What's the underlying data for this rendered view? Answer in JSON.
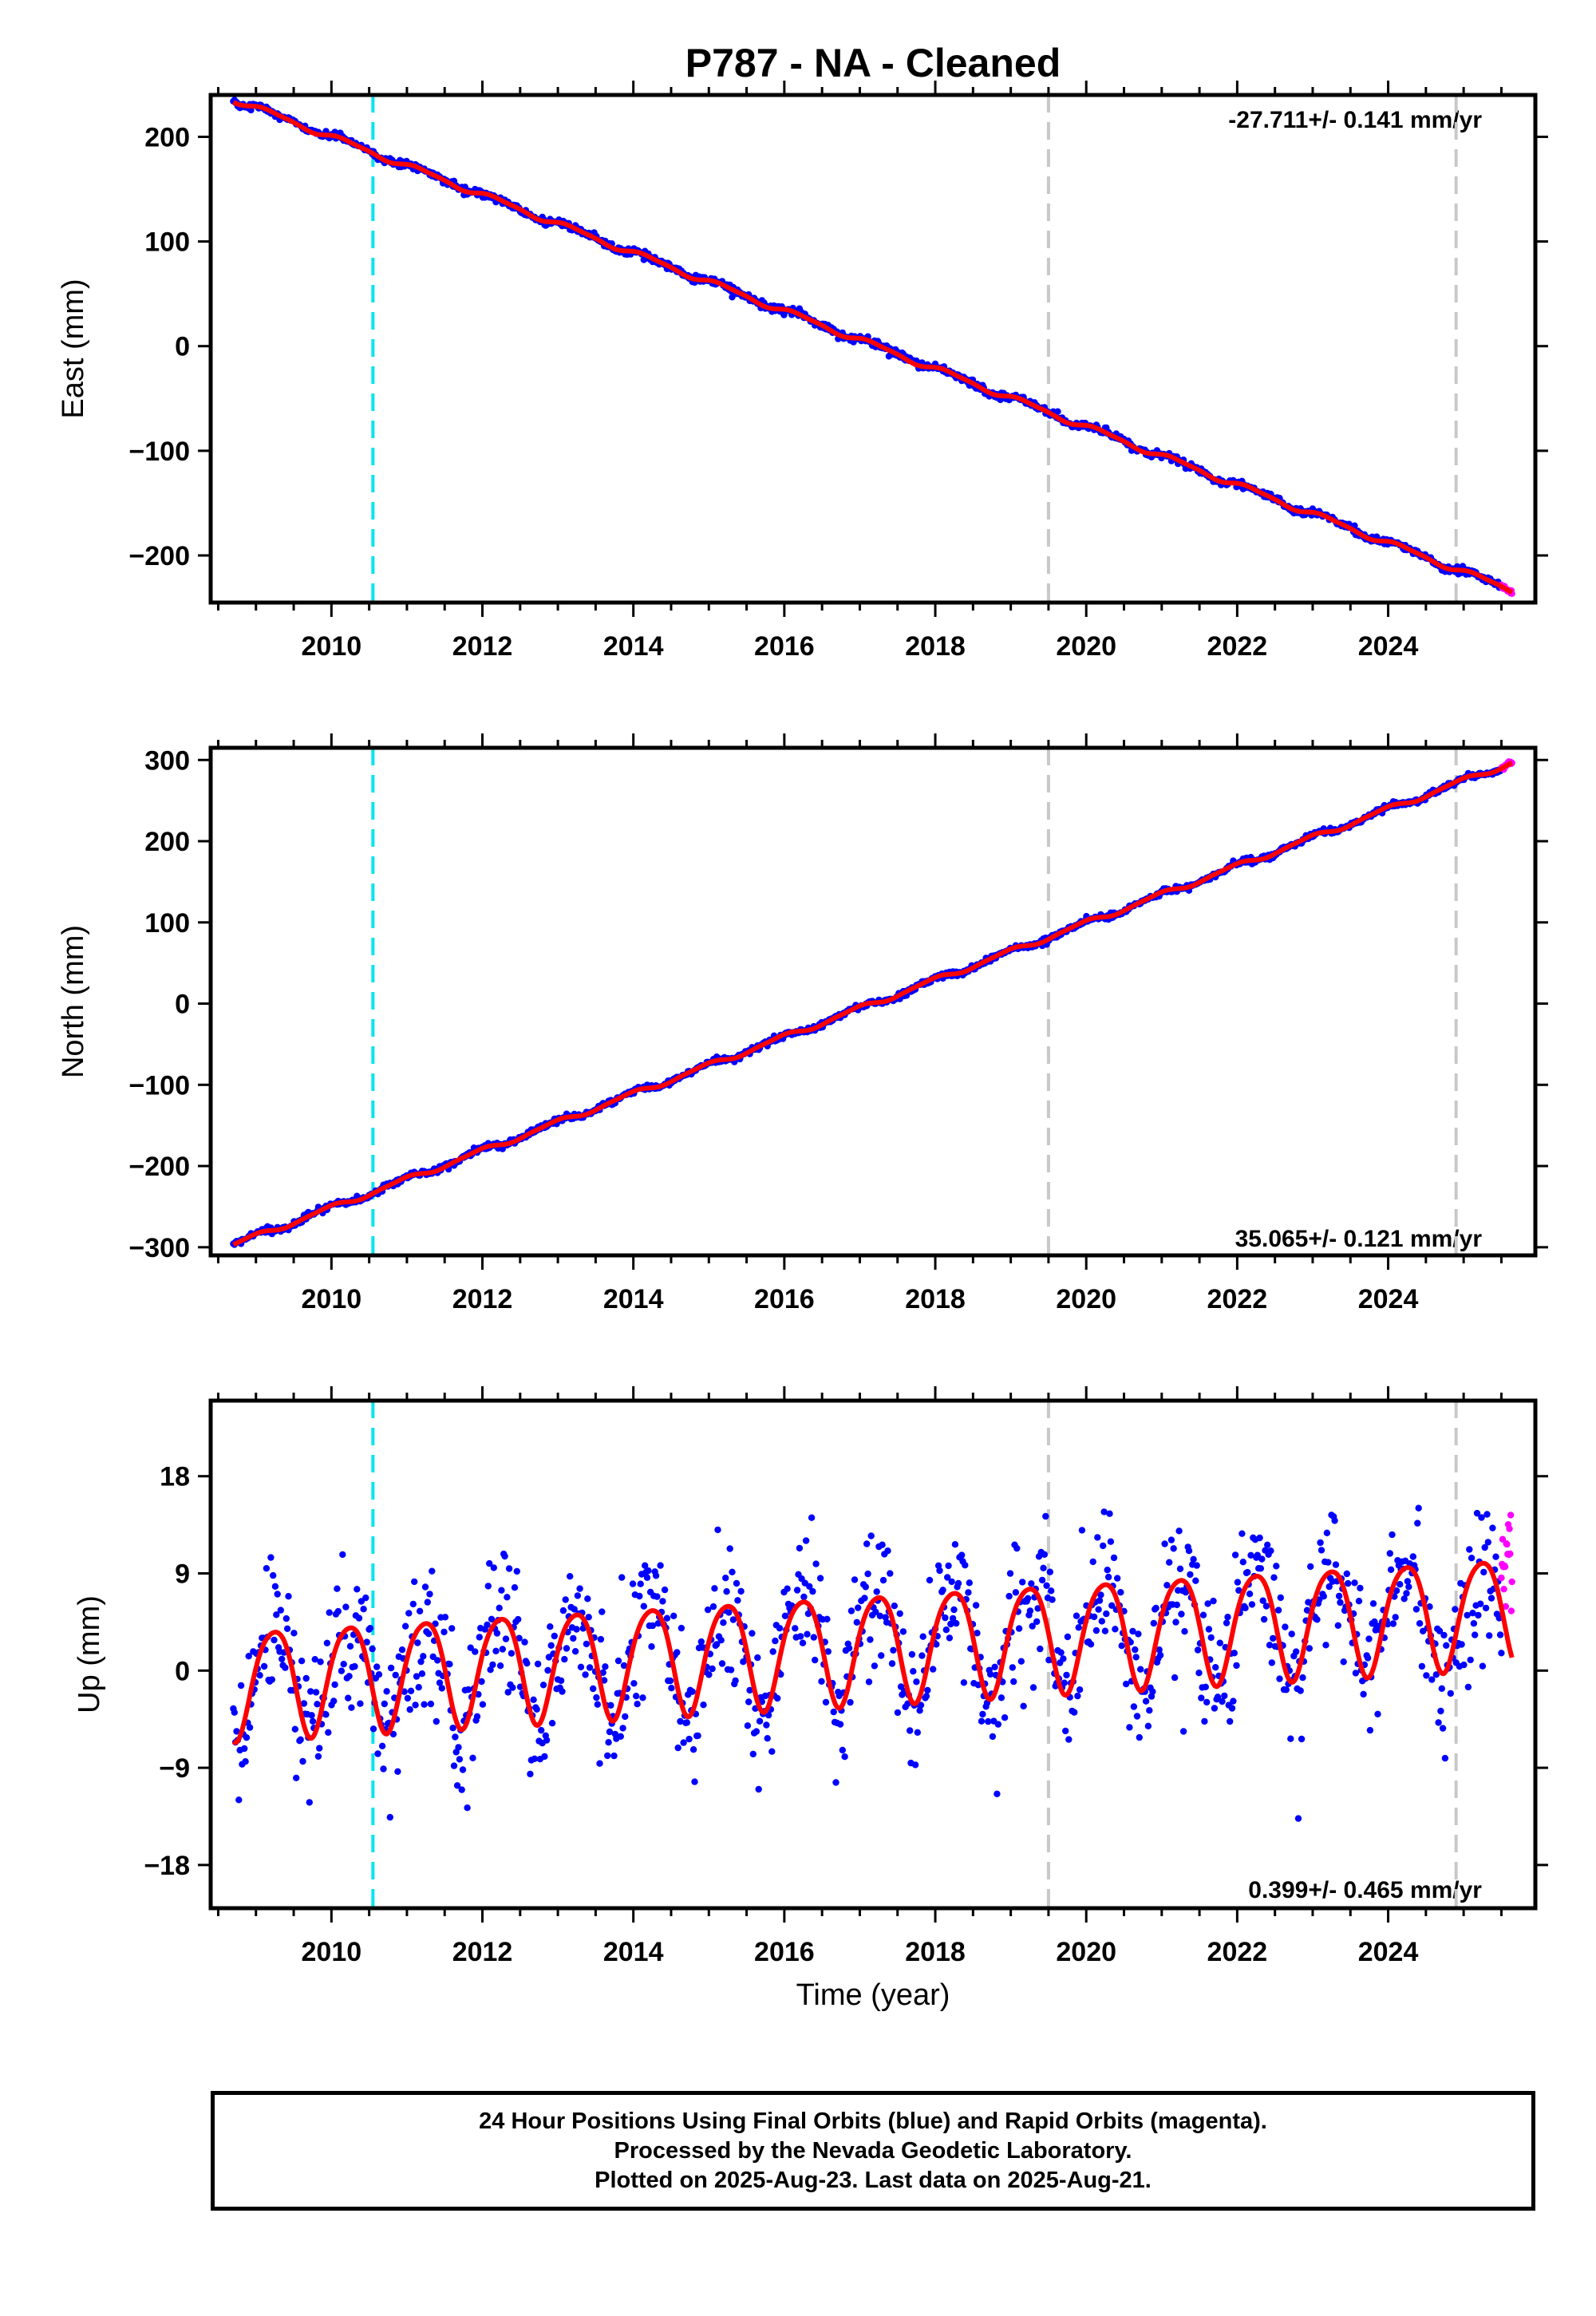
{
  "colors": {
    "final_orbits": "#0000ff",
    "rapid_orbits": "#ff00ff",
    "model_fit": "#ff0000",
    "antenna_change": "#00e5ee",
    "event_line": "#c8c8c8"
  },
  "chart_data": {
    "type": "scatter",
    "title": "P787  - NA - Cleaned",
    "time_axis": {
      "xlabel": "Time (year)",
      "xlim": [
        2008.4,
        2025.95
      ],
      "xticks": [
        2010,
        2012,
        2014,
        2016,
        2018,
        2020,
        2022,
        2024
      ],
      "minor_step": 0.5
    },
    "vertical_markers": [
      {
        "x": 2010.55,
        "kind": "antenna_change",
        "color": "#00e5ee"
      },
      {
        "x": 2019.5,
        "kind": "event",
        "color": "#c8c8c8"
      },
      {
        "x": 2024.9,
        "kind": "event",
        "color": "#c8c8c8"
      }
    ],
    "data_start": 2008.7,
    "rapid_start": 2025.5,
    "data_end": 2025.64,
    "panels": [
      {
        "name": "east",
        "ylabel": "East (mm)",
        "ylim": [
          -245,
          240
        ],
        "yticks": [
          -200,
          -100,
          0,
          100,
          200
        ],
        "rate_text": "-27.711+/- 0.141 mm/yr",
        "rate_position": "top-right",
        "fit": {
          "start_value": 236,
          "slope": -27.711,
          "annual_amp": 2.5,
          "annual_phase": 0.3,
          "semiannual_amp": 0.8,
          "semiannual_phase": 1.1
        },
        "scatter_sd": 1.8
      },
      {
        "name": "north",
        "ylabel": "North (mm)",
        "ylim": [
          -310,
          315
        ],
        "yticks": [
          -300,
          -200,
          -100,
          0,
          100,
          200,
          300
        ],
        "rate_text": "35.065+/- 0.121 mm/yr",
        "rate_position": "bottom-right",
        "fit": {
          "start_value": -297,
          "slope": 35.065,
          "annual_amp": 3.0,
          "annual_phase": 1.9,
          "semiannual_amp": 0.8,
          "semiannual_phase": 0.4
        },
        "scatter_sd": 1.8
      },
      {
        "name": "up",
        "ylabel": "Up (mm)",
        "ylim": [
          -22,
          25
        ],
        "yticks": [
          -18,
          -9,
          0,
          9,
          18
        ],
        "rate_text": "0.399+/- 0.465 mm/yr",
        "rate_position": "bottom-right",
        "fit": {
          "start_value": -1.0,
          "slope": 0.399,
          "annual_amp": 5.0,
          "annual_phase": 0.1,
          "semiannual_amp": 0.7,
          "semiannual_phase": 2.0
        },
        "scatter_sd": 3.4
      }
    ]
  },
  "footer": {
    "line1": "24 Hour Positions Using Final Orbits (blue) and Rapid Orbits (magenta).",
    "line2": "Processed by the Nevada Geodetic Laboratory.",
    "line3": "Plotted on 2025-Aug-23. Last data on 2025-Aug-21."
  }
}
